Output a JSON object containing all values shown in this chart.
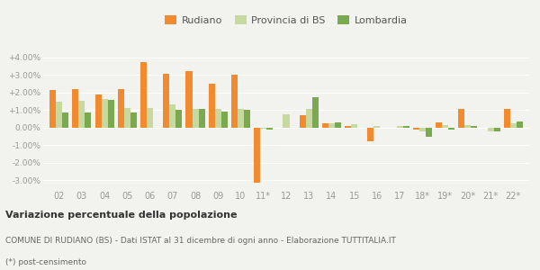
{
  "categories": [
    "02",
    "03",
    "04",
    "05",
    "06",
    "07",
    "08",
    "09",
    "10",
    "11*",
    "12",
    "13",
    "14",
    "15",
    "16",
    "17",
    "18*",
    "19*",
    "20*",
    "21*",
    "22*"
  ],
  "rudiano": [
    2.15,
    2.2,
    1.9,
    2.2,
    3.75,
    3.05,
    3.2,
    2.5,
    3.0,
    -3.15,
    0.0,
    0.7,
    0.25,
    0.1,
    -0.8,
    0.0,
    -0.1,
    0.3,
    1.05,
    0.0,
    1.05
  ],
  "provincia_bs": [
    1.5,
    1.55,
    1.65,
    1.1,
    1.1,
    1.3,
    1.05,
    1.05,
    1.05,
    -0.05,
    0.75,
    1.05,
    0.25,
    0.2,
    0.1,
    0.1,
    -0.2,
    0.15,
    0.15,
    -0.2,
    0.25
  ],
  "lombardia": [
    0.85,
    0.85,
    1.6,
    0.85,
    0.0,
    1.0,
    1.05,
    0.9,
    1.0,
    -0.1,
    0.0,
    1.75,
    0.3,
    0.0,
    0.0,
    0.1,
    -0.5,
    -0.1,
    0.1,
    -0.2,
    0.35
  ],
  "color_rudiano": "#f28a30",
  "color_provincia": "#c8d9a0",
  "color_lombardia": "#7aaa50",
  "title_bold": "Variazione percentuale della popolazione",
  "subtitle": "COMUNE DI RUDIANO (BS) - Dati ISTAT al 31 dicembre di ogni anno - Elaborazione TUTTITALIA.IT",
  "footnote": "(*) post-censimento",
  "ylim": [
    -3.5,
    4.5
  ],
  "yticks": [
    -3.0,
    -2.0,
    -1.0,
    0.0,
    1.0,
    2.0,
    3.0,
    4.0
  ],
  "ytick_labels": [
    "-3.00%",
    "-2.00%",
    "-1.00%",
    "0.00%",
    "+1.00%",
    "+2.00%",
    "+3.00%",
    "+4.00%"
  ],
  "legend_labels": [
    "Rudiano",
    "Provincia di BS",
    "Lombardia"
  ],
  "bg_color": "#f2f2ee"
}
